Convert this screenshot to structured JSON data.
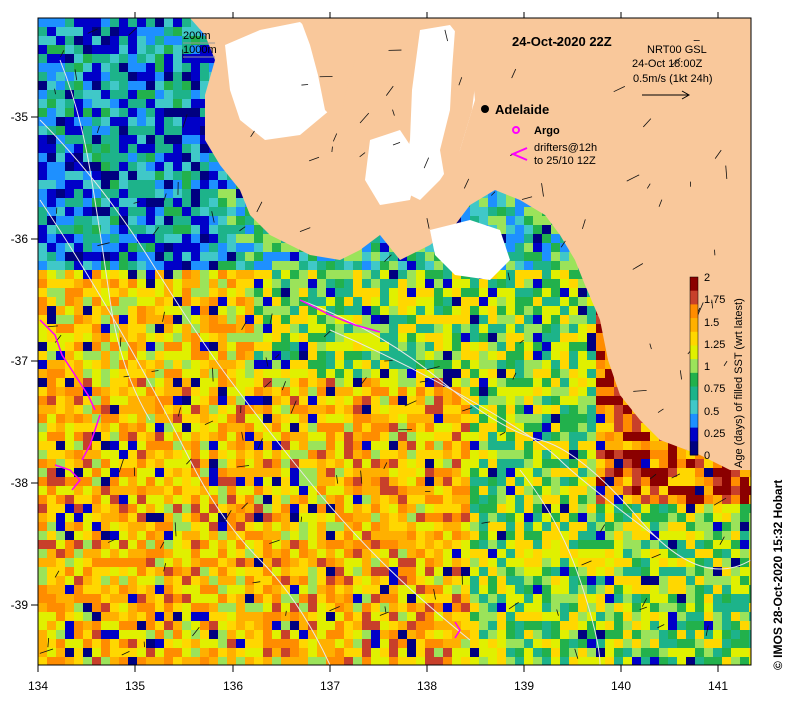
{
  "map": {
    "date_title": "24-Oct-2020 22Z",
    "place_label": "Adelaide",
    "legend_argo": "Argo",
    "legend_drifters_line1": "drifters@12h",
    "legend_drifters_line2": "to 25/10 12Z",
    "isobath_200": "200m",
    "isobath_1000": "1000m",
    "vector_header_1": "NRT00 GSL",
    "vector_header_2": "24-Oct 18:00Z",
    "vector_scale_label": "0.5m/s (1kt 24h)",
    "credit": "© IMOS 28-Oct-2020 15:32 Hobart",
    "lon_ticks": [
      "134",
      "135",
      "136",
      "137",
      "138",
      "139",
      "140",
      "141"
    ],
    "lat_ticks": [
      "-35",
      "-36",
      "-37",
      "-38",
      "-39"
    ]
  },
  "colorbar": {
    "title": "Age (days) of filled SST (wrt latest)",
    "ticks": [
      "2",
      "1.75",
      "1.5",
      "1.25",
      "1",
      "0.75",
      "0.5",
      "0.25",
      "0"
    ],
    "colors": [
      "#8b0000",
      "#c8402a",
      "#ff8c00",
      "#ffb000",
      "#ffd700",
      "#e0f000",
      "#9be35a",
      "#22b14c",
      "#1db38a",
      "#40c8c8",
      "#1e90ff",
      "#0000c8",
      "#000080"
    ]
  },
  "colors": {
    "land": "#f9c89b",
    "no_data": "#ffffff",
    "drifter": "#ff00ff",
    "contour": "#e8e8e8"
  }
}
